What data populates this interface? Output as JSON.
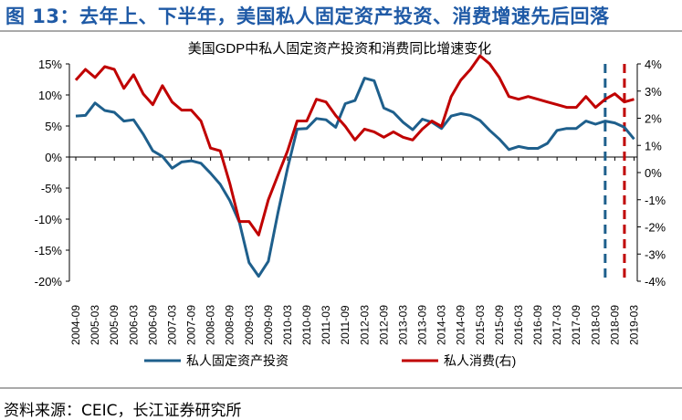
{
  "figure_title": "图 13：去年上、下半年，美国私人固定资产投资、消费增速先后回落",
  "source": "资料来源：CEIC，长江证券研究所",
  "colors": {
    "investment": "#1e5f8c",
    "consumption": "#c00000",
    "title_blue": "#1f5aa6",
    "rule_grey": "#a9a9a9"
  },
  "chart_data": {
    "type": "line",
    "title": "美国GDP中私人固定资产投资和消费同比增速变化",
    "xlabel": "",
    "ylabel_left": "",
    "ylabel_right": "",
    "x_ticks": [
      "2004-09",
      "2005-03",
      "2005-09",
      "2006-03",
      "2006-09",
      "2007-03",
      "2007-09",
      "2008-03",
      "2008-09",
      "2009-03",
      "2009-09",
      "2010-03",
      "2010-09",
      "2011-03",
      "2011-09",
      "2012-03",
      "2012-09",
      "2013-03",
      "2013-09",
      "2014-03",
      "2014-09",
      "2015-03",
      "2015-09",
      "2016-03",
      "2016-09",
      "2017-03",
      "2017-09",
      "2018-03",
      "2018-09",
      "2019-03"
    ],
    "x_range": [
      "2004-07",
      "2019-04"
    ],
    "y_left": {
      "min": -20,
      "max": 15,
      "step": 5,
      "unit": "%",
      "tick_labels": [
        "-20%",
        "-15%",
        "-10%",
        "-5%",
        "0%",
        "5%",
        "10%",
        "15%"
      ]
    },
    "y_right": {
      "min": -4,
      "max": 4,
      "step": 1,
      "unit": "%",
      "tick_labels": [
        "-4%",
        "-3%",
        "-2%",
        "-1%",
        "0%",
        "1%",
        "2%",
        "3%",
        "4%"
      ]
    },
    "legend_placement": "bottom",
    "series": [
      {
        "name": "私人固定资产投资",
        "axis": "left",
        "color": "#1e5f8c",
        "points": [
          [
            "2004-09",
            6.6
          ],
          [
            "2004-12",
            6.7
          ],
          [
            "2005-03",
            8.7
          ],
          [
            "2005-06",
            7.5
          ],
          [
            "2005-09",
            7.2
          ],
          [
            "2005-12",
            5.8
          ],
          [
            "2006-03",
            6.0
          ],
          [
            "2006-06",
            3.7
          ],
          [
            "2006-09",
            1.0
          ],
          [
            "2006-12",
            0.1
          ],
          [
            "2007-03",
            -1.8
          ],
          [
            "2007-06",
            -0.8
          ],
          [
            "2007-09",
            -0.6
          ],
          [
            "2007-12",
            -1.0
          ],
          [
            "2008-03",
            -2.6
          ],
          [
            "2008-06",
            -4.4
          ],
          [
            "2008-09",
            -7.0
          ],
          [
            "2008-12",
            -10.5
          ],
          [
            "2009-03",
            -17.0
          ],
          [
            "2009-06",
            -19.2
          ],
          [
            "2009-09",
            -16.8
          ],
          [
            "2009-12",
            -9.0
          ],
          [
            "2010-03",
            -1.8
          ],
          [
            "2010-06",
            4.5
          ],
          [
            "2010-09",
            4.6
          ],
          [
            "2010-12",
            6.2
          ],
          [
            "2011-03",
            6.0
          ],
          [
            "2011-06",
            4.8
          ],
          [
            "2011-09",
            8.6
          ],
          [
            "2011-12",
            9.1
          ],
          [
            "2012-03",
            12.7
          ],
          [
            "2012-06",
            12.3
          ],
          [
            "2012-09",
            7.9
          ],
          [
            "2012-12",
            7.2
          ],
          [
            "2013-03",
            5.6
          ],
          [
            "2013-06",
            4.4
          ],
          [
            "2013-09",
            6.1
          ],
          [
            "2013-12",
            5.6
          ],
          [
            "2014-03",
            4.6
          ],
          [
            "2014-06",
            6.6
          ],
          [
            "2014-09",
            7.0
          ],
          [
            "2014-12",
            6.7
          ],
          [
            "2015-03",
            5.9
          ],
          [
            "2015-06",
            4.3
          ],
          [
            "2015-09",
            2.9
          ],
          [
            "2015-12",
            1.2
          ],
          [
            "2016-03",
            1.7
          ],
          [
            "2016-06",
            1.4
          ],
          [
            "2016-09",
            1.4
          ],
          [
            "2016-12",
            2.2
          ],
          [
            "2017-03",
            4.3
          ],
          [
            "2017-06",
            4.6
          ],
          [
            "2017-09",
            4.6
          ],
          [
            "2017-12",
            5.8
          ],
          [
            "2018-03",
            5.3
          ],
          [
            "2018-06",
            5.8
          ],
          [
            "2018-09",
            5.5
          ],
          [
            "2018-12",
            4.8
          ],
          [
            "2019-03",
            2.9
          ]
        ]
      },
      {
        "name": "私人消费(右)",
        "axis": "right",
        "color": "#c00000",
        "points": [
          [
            "2004-09",
            3.4
          ],
          [
            "2004-12",
            3.8
          ],
          [
            "2005-03",
            3.5
          ],
          [
            "2005-06",
            3.9
          ],
          [
            "2005-09",
            3.8
          ],
          [
            "2005-12",
            3.1
          ],
          [
            "2006-03",
            3.6
          ],
          [
            "2006-06",
            2.9
          ],
          [
            "2006-09",
            2.5
          ],
          [
            "2006-12",
            3.2
          ],
          [
            "2007-03",
            2.6
          ],
          [
            "2007-06",
            2.3
          ],
          [
            "2007-09",
            2.3
          ],
          [
            "2007-12",
            1.9
          ],
          [
            "2008-03",
            0.9
          ],
          [
            "2008-06",
            0.8
          ],
          [
            "2008-09",
            -0.4
          ],
          [
            "2008-12",
            -1.8
          ],
          [
            "2009-03",
            -1.8
          ],
          [
            "2009-06",
            -2.3
          ],
          [
            "2009-09",
            -1.0
          ],
          [
            "2009-12",
            -0.1
          ],
          [
            "2010-03",
            0.8
          ],
          [
            "2010-06",
            1.9
          ],
          [
            "2010-09",
            1.9
          ],
          [
            "2010-12",
            2.7
          ],
          [
            "2011-03",
            2.6
          ],
          [
            "2011-06",
            2.1
          ],
          [
            "2011-09",
            1.7
          ],
          [
            "2011-12",
            1.2
          ],
          [
            "2012-03",
            1.6
          ],
          [
            "2012-06",
            1.5
          ],
          [
            "2012-09",
            1.3
          ],
          [
            "2012-12",
            1.5
          ],
          [
            "2013-03",
            1.3
          ],
          [
            "2013-06",
            1.2
          ],
          [
            "2013-09",
            1.6
          ],
          [
            "2013-12",
            1.9
          ],
          [
            "2014-03",
            1.7
          ],
          [
            "2014-06",
            2.8
          ],
          [
            "2014-09",
            3.4
          ],
          [
            "2014-12",
            3.8
          ],
          [
            "2015-03",
            4.3
          ],
          [
            "2015-06",
            4.0
          ],
          [
            "2015-09",
            3.5
          ],
          [
            "2015-12",
            2.8
          ],
          [
            "2016-03",
            2.7
          ],
          [
            "2016-06",
            2.8
          ],
          [
            "2016-09",
            2.7
          ],
          [
            "2016-12",
            2.6
          ],
          [
            "2017-03",
            2.5
          ],
          [
            "2017-06",
            2.4
          ],
          [
            "2017-09",
            2.4
          ],
          [
            "2017-12",
            2.8
          ],
          [
            "2018-03",
            2.4
          ],
          [
            "2018-06",
            2.7
          ],
          [
            "2018-09",
            2.9
          ],
          [
            "2018-12",
            2.6
          ],
          [
            "2019-03",
            2.7
          ]
        ]
      }
    ],
    "annotations": [
      {
        "type": "vertical-dashed-line",
        "x": "2018-06",
        "color": "#1e5f8c"
      },
      {
        "type": "vertical-dashed-line",
        "x": "2018-12",
        "color": "#c00000"
      }
    ],
    "grid": false
  }
}
